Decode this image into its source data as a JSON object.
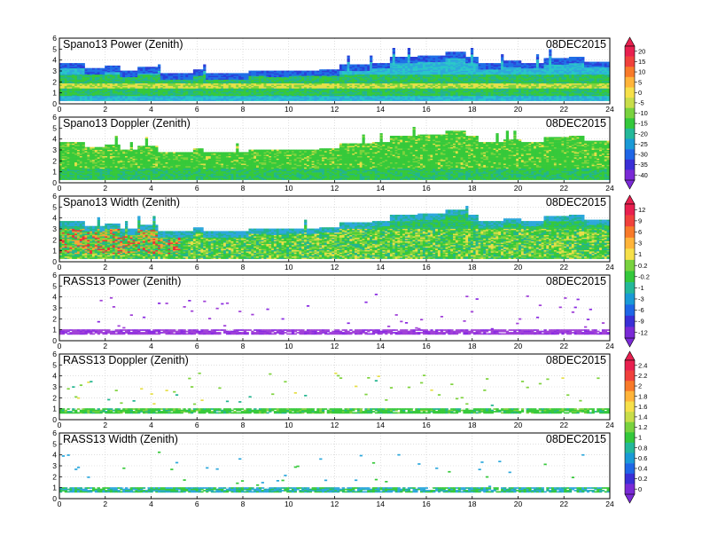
{
  "chart_data": [
    {
      "type": "heatmap",
      "title": "Spano13 Power (Zenith)",
      "date": "08DEC2015",
      "xlim": [
        0,
        24
      ],
      "ylim": [
        0,
        6
      ],
      "xticks": [
        "0",
        "2",
        "4",
        "6",
        "8",
        "10",
        "12",
        "14",
        "16",
        "18",
        "20",
        "22",
        "24"
      ],
      "yticks": [
        "0",
        "1",
        "2",
        "3",
        "4",
        "5",
        "6"
      ],
      "grid": true,
      "colorbar": {
        "ticks": [
          "20",
          "15",
          "10",
          "5",
          "0",
          "-5",
          "-10",
          "-15",
          "-20",
          "-25",
          "-30",
          "-35",
          "-40"
        ],
        "colors": [
          "#e8204f",
          "#f0413c",
          "#f87a2a",
          "#ffb43a",
          "#f6e04a",
          "#c8dd4a",
          "#79d23f",
          "#34c83c",
          "#24b89a",
          "#1a9ad6",
          "#1f66e6",
          "#3a2fd6",
          "#7a2ad6"
        ]
      }
    },
    {
      "type": "heatmap",
      "title": "Spano13 Doppler (Zenith)",
      "date": "08DEC2015",
      "xlim": [
        0,
        24
      ],
      "ylim": [
        0,
        6
      ],
      "xticks": [
        "0",
        "2",
        "4",
        "6",
        "8",
        "10",
        "12",
        "14",
        "16",
        "18",
        "20",
        "22",
        "24"
      ],
      "yticks": [
        "0",
        "1",
        "2",
        "3",
        "4",
        "5",
        "6"
      ],
      "grid": true,
      "colorbar": null
    },
    {
      "type": "heatmap",
      "title": "Spano13 Width (Zenith)",
      "date": "08DEC2015",
      "xlim": [
        0,
        24
      ],
      "ylim": [
        0,
        6
      ],
      "xticks": [
        "0",
        "2",
        "4",
        "6",
        "8",
        "10",
        "12",
        "14",
        "16",
        "18",
        "20",
        "22",
        "24"
      ],
      "yticks": [
        "0",
        "1",
        "2",
        "3",
        "4",
        "5",
        "6"
      ],
      "grid": true,
      "colorbar": {
        "ticks": [
          "12",
          "9",
          "6",
          "3",
          "1",
          "0.2",
          "-0.2",
          "-1",
          "-3",
          "-6",
          "-9",
          "-12"
        ],
        "colors": [
          "#e8204f",
          "#f0413c",
          "#f87a2a",
          "#ffb43a",
          "#f6e04a",
          "#79d23f",
          "#34c83c",
          "#24b89a",
          "#1a9ad6",
          "#1f66e6",
          "#3a2fd6",
          "#7a2ad6"
        ]
      }
    },
    {
      "type": "heatmap",
      "title": "RASS13 Power (Zenith)",
      "date": "08DEC2015",
      "xlim": [
        0,
        24
      ],
      "ylim": [
        0,
        6
      ],
      "xticks": [
        "0",
        "2",
        "4",
        "6",
        "8",
        "10",
        "12",
        "14",
        "16",
        "18",
        "20",
        "22",
        "24"
      ],
      "yticks": [
        "0",
        "1",
        "2",
        "3",
        "4",
        "5",
        "6"
      ],
      "grid": true,
      "colorbar": null
    },
    {
      "type": "heatmap",
      "title": "RASS13 Doppler (Zenith)",
      "date": "08DEC2015",
      "xlim": [
        0,
        24
      ],
      "ylim": [
        0,
        6
      ],
      "xticks": [
        "0",
        "2",
        "4",
        "6",
        "8",
        "10",
        "12",
        "14",
        "16",
        "18",
        "20",
        "22",
        "24"
      ],
      "yticks": [
        "0",
        "1",
        "2",
        "3",
        "4",
        "5",
        "6"
      ],
      "grid": true,
      "colorbar": {
        "ticks": [
          "2.4",
          "2.2",
          "2",
          "1.8",
          "1.6",
          "1.4",
          "1.2",
          "1",
          "0.8",
          "0.6",
          "0.4",
          "0.2",
          "0"
        ],
        "colors": [
          "#e8204f",
          "#f0413c",
          "#f87a2a",
          "#ffb43a",
          "#f6e04a",
          "#c8dd4a",
          "#79d23f",
          "#34c83c",
          "#24b89a",
          "#1a9ad6",
          "#1f66e6",
          "#3a2fd6",
          "#7a2ad6"
        ]
      }
    },
    {
      "type": "heatmap",
      "title": "RASS13 Width (Zenith)",
      "date": "08DEC2015",
      "xlim": [
        0,
        24
      ],
      "ylim": [
        0,
        6
      ],
      "xticks": [
        "0",
        "2",
        "4",
        "6",
        "8",
        "10",
        "12",
        "14",
        "16",
        "18",
        "20",
        "22",
        "24"
      ],
      "yticks": [
        "0",
        "1",
        "2",
        "3",
        "4",
        "5",
        "6"
      ],
      "grid": true,
      "colorbar": null
    }
  ]
}
